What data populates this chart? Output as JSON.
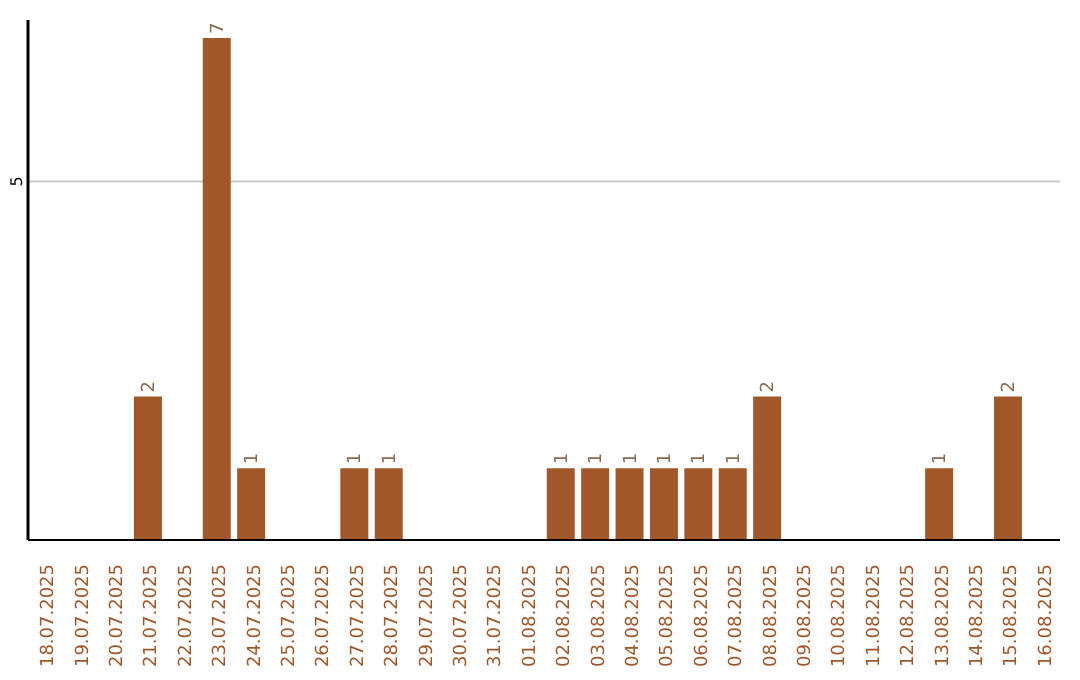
{
  "chart_data": {
    "type": "bar",
    "categories": [
      "18.07.2025",
      "19.07.2025",
      "20.07.2025",
      "21.07.2025",
      "22.07.2025",
      "23.07.2025",
      "24.07.2025",
      "25.07.2025",
      "26.07.2025",
      "27.07.2025",
      "28.07.2025",
      "29.07.2025",
      "30.07.2025",
      "31.07.2025",
      "01.08.2025",
      "02.08.2025",
      "03.08.2025",
      "04.08.2025",
      "05.08.2025",
      "06.08.2025",
      "07.08.2025",
      "08.08.2025",
      "09.08.2025",
      "10.08.2025",
      "11.08.2025",
      "12.08.2025",
      "13.08.2025",
      "14.08.2025",
      "15.08.2025",
      "16.08.2025"
    ],
    "values": [
      null,
      null,
      null,
      2,
      null,
      7,
      1,
      null,
      null,
      1,
      1,
      null,
      null,
      null,
      null,
      1,
      1,
      1,
      1,
      1,
      1,
      2,
      null,
      null,
      null,
      null,
      1,
      null,
      2,
      null
    ],
    "color": "#a0582a",
    "ylim": [
      0,
      7.25
    ],
    "yticks": [
      5
    ],
    "grid": "y",
    "data_labels": true
  }
}
